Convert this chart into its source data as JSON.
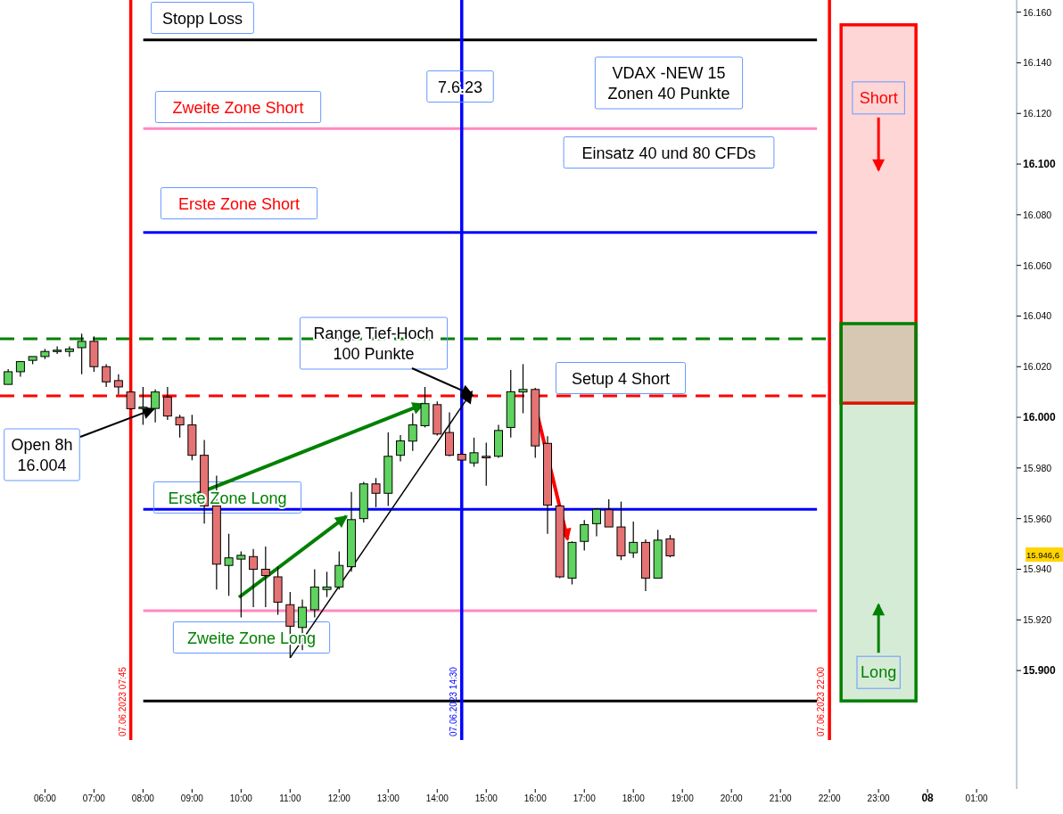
{
  "chart_data": {
    "type": "candlestick",
    "x": [
      "2023-06-07T05:15",
      "2023-06-07T05:30",
      "2023-06-07T05:45",
      "2023-06-07T06:00",
      "2023-06-07T06:15",
      "2023-06-07T06:30",
      "2023-06-07T06:45",
      "2023-06-07T07:00",
      "2023-06-07T07:15",
      "2023-06-07T07:30",
      "2023-06-07T07:45",
      "2023-06-07T08:00",
      "2023-06-07T08:15",
      "2023-06-07T08:30",
      "2023-06-07T08:45",
      "2023-06-07T09:00",
      "2023-06-07T09:15",
      "2023-06-07T09:30",
      "2023-06-07T09:45",
      "2023-06-07T10:00",
      "2023-06-07T10:15",
      "2023-06-07T10:30",
      "2023-06-07T10:45",
      "2023-06-07T11:00",
      "2023-06-07T11:15",
      "2023-06-07T11:30",
      "2023-06-07T11:45",
      "2023-06-07T12:00",
      "2023-06-07T12:15",
      "2023-06-07T12:30",
      "2023-06-07T12:45",
      "2023-06-07T13:00",
      "2023-06-07T13:15",
      "2023-06-07T13:30",
      "2023-06-07T13:45",
      "2023-06-07T14:00",
      "2023-06-07T14:15",
      "2023-06-07T14:30",
      "2023-06-07T14:45",
      "2023-06-07T15:00",
      "2023-06-07T15:15",
      "2023-06-07T15:30",
      "2023-06-07T15:45",
      "2023-06-07T16:00",
      "2023-06-07T16:15",
      "2023-06-07T16:30",
      "2023-06-07T16:45",
      "2023-06-07T17:00",
      "2023-06-07T17:15",
      "2023-06-07T17:30",
      "2023-06-07T17:45",
      "2023-06-07T18:00",
      "2023-06-07T18:15",
      "2023-06-07T18:30",
      "2023-06-07T18:45"
    ],
    "ohlc": [
      [
        16013,
        16019,
        16013,
        16018
      ],
      [
        16018,
        16022,
        16016,
        16022
      ],
      [
        16022.5,
        16024,
        16021,
        16024
      ],
      [
        16024,
        16027,
        16023,
        16026
      ],
      [
        16026,
        16028,
        16025,
        16026.5
      ],
      [
        16026,
        16028,
        16024,
        16027
      ],
      [
        16027.5,
        16033,
        16017,
        16030
      ],
      [
        16030,
        16032,
        16018,
        16020
      ],
      [
        16020,
        16021,
        16012,
        16014
      ],
      [
        16014.5,
        16017,
        16009,
        16012
      ],
      [
        16010,
        16010,
        16003,
        16003.4
      ],
      [
        16004,
        16012,
        15997,
        16004
      ],
      [
        16003.5,
        16011,
        15998,
        16010
      ],
      [
        16008,
        16012,
        15999,
        16000.5
      ],
      [
        16000,
        16001,
        15992,
        15997
      ],
      [
        15997,
        16001,
        15983,
        15985
      ],
      [
        15985,
        15991,
        15958,
        15965
      ],
      [
        15965,
        15977,
        15932,
        15942
      ],
      [
        15941.5,
        15954,
        15929.5,
        15944.5
      ],
      [
        15944,
        15947,
        15921,
        15945.5
      ],
      [
        15945,
        15948,
        15925,
        15940
      ],
      [
        15940,
        15949,
        15925,
        15937.5
      ],
      [
        15937,
        15941,
        15922,
        15927
      ],
      [
        15926,
        15931,
        15905,
        15917.5
      ],
      [
        15917,
        15928,
        15908,
        15925
      ],
      [
        15924,
        15940,
        15921,
        15933
      ],
      [
        15932,
        15939,
        15929,
        15933
      ],
      [
        15933,
        15947,
        15932,
        15941.5
      ],
      [
        15941,
        15970.5,
        15939,
        15959.6
      ],
      [
        15960,
        15974.5,
        15958.5,
        15973.7
      ],
      [
        15973.7,
        15976,
        15964.5,
        15970
      ],
      [
        15970,
        15994,
        15965,
        15984.6
      ],
      [
        15985,
        15993,
        15982.6,
        15990.7
      ],
      [
        15990.6,
        16001.6,
        15986.7,
        15997
      ],
      [
        15996.7,
        16012,
        15996,
        16005.4
      ],
      [
        16005,
        16006.3,
        15992.8,
        15993.4
      ],
      [
        15994,
        16002,
        15984.6,
        15985
      ],
      [
        15985.4,
        15985.4,
        15983,
        15983.1
      ],
      [
        15982,
        15992,
        15980.5,
        15986
      ],
      [
        15984.6,
        15990,
        15973,
        15984
      ],
      [
        15984.6,
        15997,
        15984,
        15994.8
      ],
      [
        15996,
        16018.7,
        15992,
        16010.1
      ],
      [
        16010,
        16021,
        16001.6,
        16011
      ],
      [
        16011,
        16011.6,
        15984,
        15988.7
      ],
      [
        15989.7,
        15992.5,
        15954,
        15965.3
      ],
      [
        15965,
        15965.3,
        15936.5,
        15937
      ],
      [
        15936.5,
        15951,
        15934,
        15950.6
      ],
      [
        15951,
        15959.4,
        15947.4,
        15957.6
      ],
      [
        15958,
        15964,
        15953,
        15963.7
      ],
      [
        15963.5,
        15967.6,
        15956.7,
        15956.7
      ],
      [
        15956.7,
        15966.7,
        15943.6,
        15945.3
      ],
      [
        15946.5,
        15958.8,
        15944.5,
        15950.6
      ],
      [
        15950.6,
        15951.8,
        15931.4,
        15936.5
      ],
      [
        15936.5,
        15955.6,
        15936.5,
        15951.5
      ],
      [
        15952,
        15953.5,
        15944.7,
        15945.3
      ]
    ],
    "xlim": [
      "2023-06-07T05:05",
      "2023-06-08T01:49"
    ],
    "xticks": [
      {
        "value": "2023-06-07T06:00",
        "label": "06:00"
      },
      {
        "value": "2023-06-07T07:00",
        "label": "07:00"
      },
      {
        "value": "2023-06-07T08:00",
        "label": "08:00"
      },
      {
        "value": "2023-06-07T09:00",
        "label": "09:00"
      },
      {
        "value": "2023-06-07T10:00",
        "label": "10:00"
      },
      {
        "value": "2023-06-07T11:00",
        "label": "11:00"
      },
      {
        "value": "2023-06-07T12:00",
        "label": "12:00"
      },
      {
        "value": "2023-06-07T13:00",
        "label": "13:00"
      },
      {
        "value": "2023-06-07T14:00",
        "label": "14:00"
      },
      {
        "value": "2023-06-07T15:00",
        "label": "15:00"
      },
      {
        "value": "2023-06-07T16:00",
        "label": "16:00"
      },
      {
        "value": "2023-06-07T17:00",
        "label": "17:00"
      },
      {
        "value": "2023-06-07T18:00",
        "label": "18:00"
      },
      {
        "value": "2023-06-07T19:00",
        "label": "19:00"
      },
      {
        "value": "2023-06-07T20:00",
        "label": "20:00"
      },
      {
        "value": "2023-06-07T21:00",
        "label": "21:00"
      },
      {
        "value": "2023-06-07T22:00",
        "label": "22:00"
      },
      {
        "value": "2023-06-07T23:00",
        "label": "23:00"
      },
      {
        "value": "2023-06-08",
        "label": "08"
      },
      {
        "value": "2023-06-08T01:00",
        "label": "01:00"
      }
    ],
    "ylim": [
      15853.2,
      16164.8
    ],
    "yticks": [
      {
        "value": 15900,
        "label": "15.900"
      },
      {
        "value": 15920,
        "label": "15.920"
      },
      {
        "value": 15940,
        "label": "15.940"
      },
      {
        "value": 15960,
        "label": "15.960"
      },
      {
        "value": 15980,
        "label": "15.980"
      },
      {
        "value": 16000,
        "label": "16.000"
      },
      {
        "value": 16020,
        "label": "16.020"
      },
      {
        "value": 16040,
        "label": "16.040"
      },
      {
        "value": 16060,
        "label": "16.060"
      },
      {
        "value": 16080,
        "label": "16.080"
      },
      {
        "value": 16100,
        "label": "16.100"
      },
      {
        "value": 16120,
        "label": "16.120"
      },
      {
        "value": 16140,
        "label": "16.140"
      },
      {
        "value": 16160,
        "label": "16.160"
      }
    ],
    "ref_lines": [
      {
        "axis": "x",
        "value": "2023-06-07T07:45",
        "label": "07.06.2023 07:45",
        "color": "#ff0000"
      },
      {
        "axis": "x",
        "value": "2023-06-07T14:30",
        "label": "07.06.2023 14:30",
        "color": "#0000ff"
      },
      {
        "axis": "x",
        "value": "2023-06-07T22:00",
        "label": "07.06.2023 22:00",
        "color": "#ff0000"
      },
      {
        "axis": "y",
        "value": 16149,
        "color": "#000000"
      },
      {
        "axis": "y",
        "value": 16114,
        "color": "#ff88c0"
      },
      {
        "axis": "y",
        "value": 16073,
        "color": "#0000ff"
      },
      {
        "axis": "y",
        "value": 16031,
        "color": "#008000",
        "line_style": "dashed"
      },
      {
        "axis": "y",
        "value": 16008.5,
        "color": "#ff0000",
        "line_style": "dashed"
      },
      {
        "axis": "y",
        "value": 15963.7,
        "color": "#0000ff"
      },
      {
        "axis": "y",
        "value": 15923.6,
        "color": "#ff88c0"
      },
      {
        "axis": "y",
        "value": 15888,
        "color": "#000000"
      }
    ],
    "bands": [
      {
        "axis": "y",
        "from": 16005.6,
        "to": 16155,
        "label": "Short",
        "color": "#ff0000"
      },
      {
        "axis": "y",
        "from": 15888,
        "to": 16037,
        "label": "Long",
        "color": "#008000"
      }
    ],
    "annotations": [
      "Stopp Loss",
      "7.6.23",
      "VDAX -NEW 15\nZonen 40 Punkte",
      "Zweite Zone Short",
      "Einsatz 40 und 80 CFDs",
      "Erste Zone Short",
      {
        "text": "Range Tief-Hoch\n100 Punkte",
        "x": "2023-06-07T14:45",
        "y": 16008.5
      },
      "Setup 4 Short",
      {
        "text": "Open 8h\n16.004",
        "x": "2023-06-07T08:15",
        "y": 16003.5
      },
      {
        "text": "Erste Zone Long",
        "x": "2023-06-07T13:45",
        "y": 16005.4
      },
      {
        "text": "Zweite Zone Long",
        "x": "2023-06-07T11:00",
        "y": 15905
      },
      "15.946,6"
    ]
  }
}
